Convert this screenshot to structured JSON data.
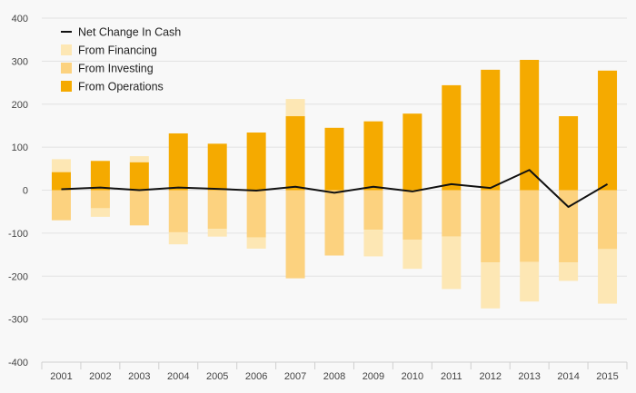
{
  "chart_data": {
    "type": "bar",
    "categories": [
      "2001",
      "2002",
      "2003",
      "2004",
      "2005",
      "2006",
      "2007",
      "2008",
      "2009",
      "2010",
      "2011",
      "2012",
      "2013",
      "2014",
      "2015"
    ],
    "ylim": [
      -400,
      400
    ],
    "yticks": [
      400,
      300,
      200,
      100,
      0,
      -100,
      -200,
      -300,
      -400
    ],
    "grid": true,
    "legend_position": "top-left",
    "colors": {
      "financing": "#fde7b4",
      "investing": "#fcd27f",
      "operations": "#f5aa00",
      "net_change": "#111111",
      "grid": "#e2e2e2"
    },
    "legend": [
      {
        "label": "Net Change In Cash",
        "key": "net_change",
        "kind": "line"
      },
      {
        "label": "From Financing",
        "key": "financing",
        "kind": "bar"
      },
      {
        "label": "From Investing",
        "key": "investing",
        "kind": "bar"
      },
      {
        "label": "From Operations",
        "key": "operations",
        "kind": "bar"
      }
    ],
    "series": [
      {
        "key": "operations",
        "name": "From Operations",
        "values": [
          42,
          68,
          65,
          132,
          108,
          134,
          172,
          145,
          160,
          178,
          244,
          280,
          303,
          172,
          278
        ]
      },
      {
        "key": "investing",
        "name": "From Investing",
        "values": [
          -70,
          -42,
          -82,
          -98,
          -90,
          -110,
          -205,
          -152,
          -92,
          -115,
          -108,
          -168,
          -167,
          -168,
          -137
        ]
      },
      {
        "key": "financing",
        "name": "From Financing",
        "values": [
          30,
          -20,
          14,
          -28,
          -18,
          -26,
          40,
          0,
          -62,
          -68,
          -122,
          -107,
          -92,
          -43,
          -127
        ]
      },
      {
        "key": "net_change",
        "name": "Net Change In Cash",
        "values": [
          2,
          6,
          0,
          6,
          3,
          -1,
          8,
          -6,
          8,
          -3,
          14,
          5,
          47,
          -39,
          14
        ]
      }
    ]
  }
}
